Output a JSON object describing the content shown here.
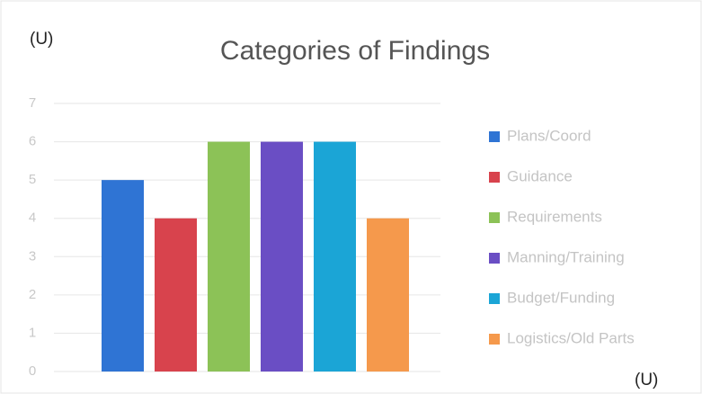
{
  "chart_data": {
    "type": "bar",
    "title": "Categories of Findings",
    "annotations": [
      "(U)",
      "(U)"
    ],
    "series": [
      {
        "name": "Plans/Coord",
        "color": "#2f74d4",
        "values": [
          5
        ]
      },
      {
        "name": "Guidance",
        "color": "#d8434d",
        "values": [
          4
        ]
      },
      {
        "name": "Requirements",
        "color": "#8cc257",
        "values": [
          6
        ]
      },
      {
        "name": "Manning/Training",
        "color": "#6a4ec4",
        "values": [
          6
        ]
      },
      {
        "name": "Budget/Funding",
        "color": "#1ba5d6",
        "values": [
          6
        ]
      },
      {
        "name": "Logistics/Old Parts",
        "color": "#f5994c",
        "values": [
          4
        ]
      }
    ],
    "ylim": [
      0,
      7
    ],
    "yticks": [
      0,
      1,
      2,
      3,
      4,
      5,
      6,
      7
    ],
    "grid": true,
    "legend": "right"
  }
}
